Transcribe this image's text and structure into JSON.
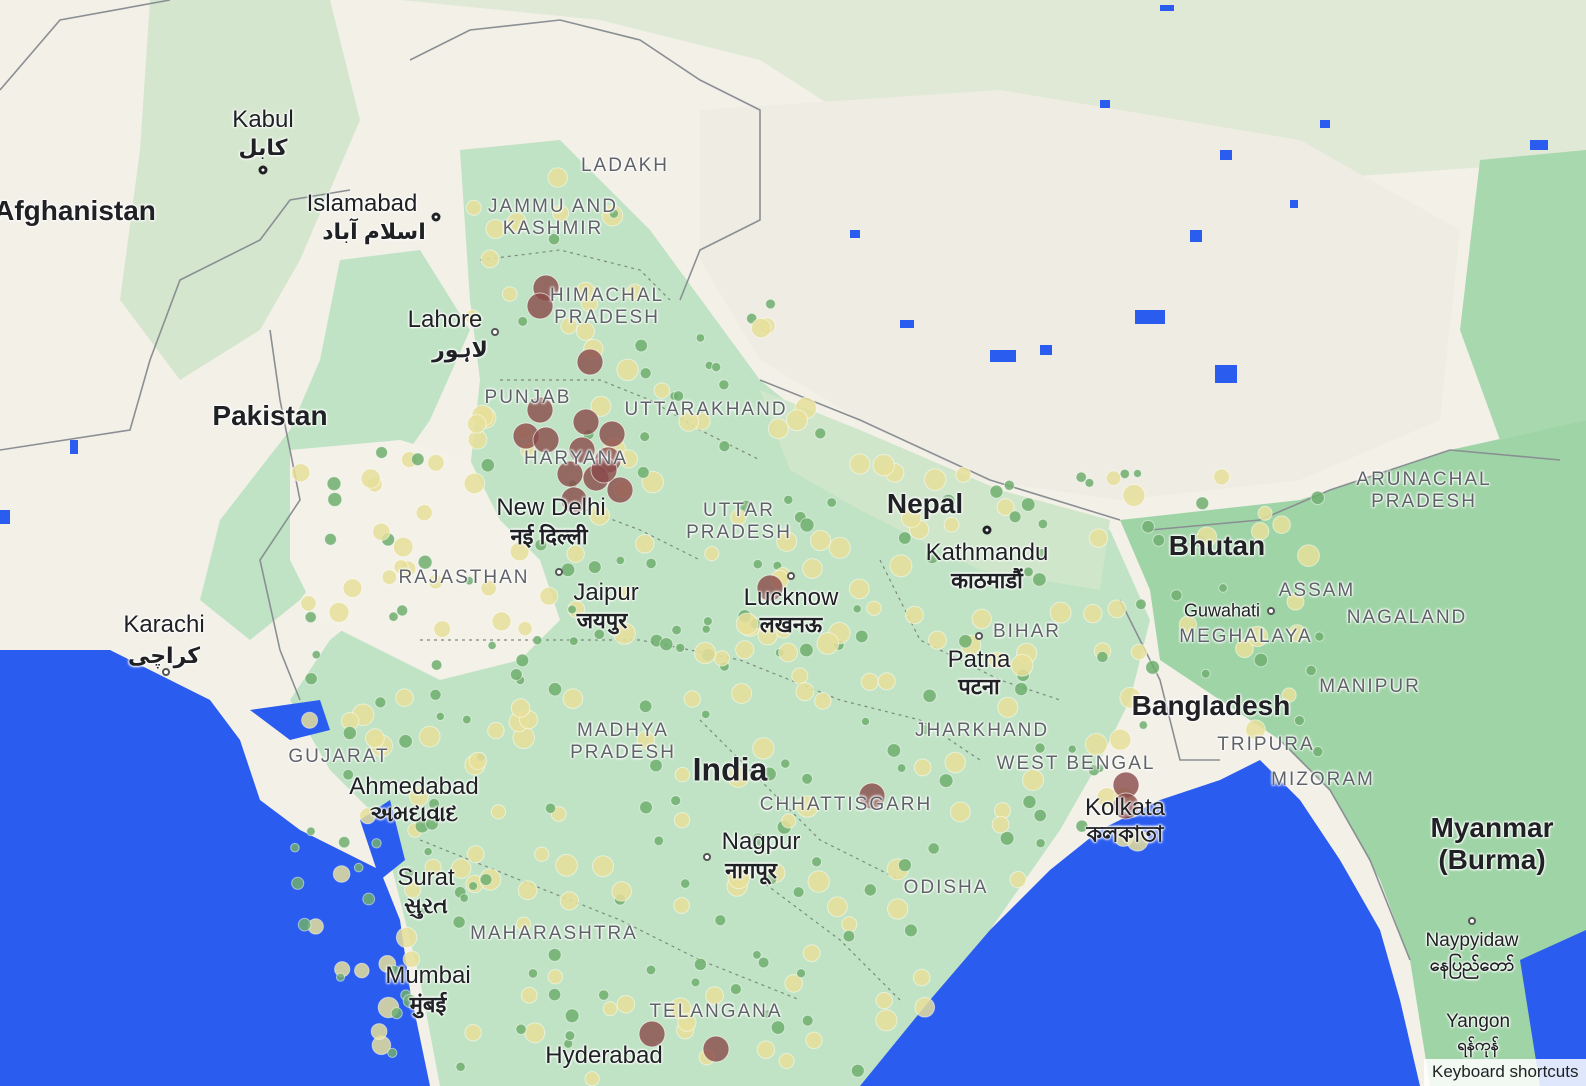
{
  "map": {
    "countries": {
      "afghanistan": "Afghanistan",
      "pakistan": "Pakistan",
      "nepal": "Nepal",
      "bhutan": "Bhutan",
      "bangladesh": "Bangladesh",
      "india": "India",
      "myanmar_line1": "Myanmar",
      "myanmar_line2": "(Burma)"
    },
    "cities": {
      "kabul": {
        "name": "Kabul",
        "local": "کابل"
      },
      "islamabad": {
        "name": "Islamabad",
        "local": "اسلام آباد"
      },
      "lahore": {
        "name": "Lahore",
        "local": "لاہور"
      },
      "karachi": {
        "name": "Karachi",
        "local": "کراچی"
      },
      "new_delhi": {
        "name": "New Delhi",
        "local": "नई दिल्ली"
      },
      "jaipur": {
        "name": "Jaipur",
        "local": "जयपुर"
      },
      "lucknow": {
        "name": "Lucknow",
        "local": "लखनऊ"
      },
      "kathmandu": {
        "name": "Kathmandu",
        "local": "काठमाडौं"
      },
      "patna": {
        "name": "Patna",
        "local": "पटना"
      },
      "guwahati": {
        "name": "Guwahati"
      },
      "ahmedabad": {
        "name": "Ahmedabad",
        "local": "અમદાવાદ"
      },
      "surat": {
        "name": "Surat",
        "local": "સુરત"
      },
      "mumbai": {
        "name": "Mumbai",
        "local": "मुंबई"
      },
      "nagpur": {
        "name": "Nagpur",
        "local": "नागपूर"
      },
      "kolkata": {
        "name": "Kolkata",
        "local": "কলকাতা"
      },
      "hyderabad": {
        "name": "Hyderabad"
      },
      "naypyidaw": {
        "name": "Naypyidaw",
        "local": "နေပြည်တော်"
      },
      "yangon": {
        "name": "Yangon",
        "local": "ရန်ကုန်"
      }
    },
    "states": {
      "ladakh": "LADAKH",
      "jammu_kashmir_1": "JAMMU AND",
      "jammu_kashmir_2": "KASHMIR",
      "himachal_1": "HIMACHAL",
      "himachal_2": "PRADESH",
      "punjab": "PUNJAB",
      "uttarakhand": "UTTARAKHAND",
      "haryana": "HARYANA",
      "uttar_pradesh_1": "UTTAR",
      "uttar_pradesh_2": "PRADESH",
      "rajasthan": "RAJASTHAN",
      "bihar": "BIHAR",
      "arunachal_1": "ARUNACHAL",
      "arunachal_2": "PRADESH",
      "assam": "ASSAM",
      "nagaland": "NAGALAND",
      "meghalaya": "MEGHALAYA",
      "manipur": "MANIPUR",
      "tripura": "TRIPURA",
      "mizoram": "MIZORAM",
      "jharkhand": "JHARKHAND",
      "west_bengal": "WEST BENGAL",
      "gujarat": "GUJARAT",
      "madhya_pradesh_1": "MADHYA",
      "madhya_pradesh_2": "PRADESH",
      "chhattisgarh": "CHHATTISGARH",
      "odisha": "ODISHA",
      "maharashtra": "MAHARASHTRA",
      "telangana": "TELANGANA"
    },
    "keyboard_shortcuts": "Keyboard shortcuts",
    "colors": {
      "land_dry": "#f3f0e8",
      "land_green": "#bfe3c4",
      "land_forest": "#9fd4a6",
      "water": "#2b5cf0",
      "marker_low": "#e6df9a",
      "marker_mid": "#6fae6f",
      "marker_high": "#8a4a4a"
    }
  }
}
